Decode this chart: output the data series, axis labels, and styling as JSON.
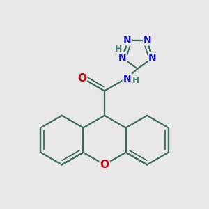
{
  "background_color": "#e8e8e8",
  "bond_color": "#3a6a5a",
  "bond_width": 1.6,
  "N_color": "#1010cc",
  "O_color": "#cc0000",
  "H_color": "#4a8a7a",
  "font_size_atom": 10,
  "fig_width": 3.0,
  "fig_height": 3.0,
  "dpi": 100,
  "xlim": [
    -1.6,
    1.6
  ],
  "ylim": [
    -1.6,
    1.6
  ]
}
